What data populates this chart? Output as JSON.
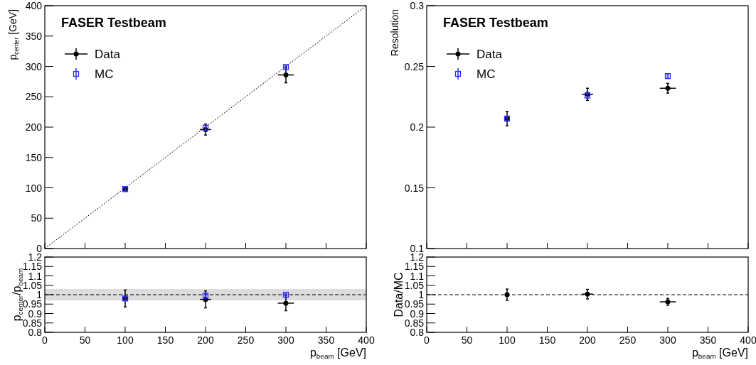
{
  "chart_data": [
    {
      "type": "scatter",
      "title": "FASER Testbeam",
      "ylabel": "p$_{center}$ [GeV]",
      "xlim": [
        0,
        400
      ],
      "xticks": [
        0,
        50,
        100,
        150,
        200,
        250,
        300,
        350,
        400
      ],
      "ylim": [
        0,
        400
      ],
      "yticks": [
        0,
        50,
        100,
        150,
        200,
        250,
        300,
        350,
        400
      ],
      "tick_labels": "y",
      "legend": "top left",
      "grid": false,
      "series": [
        {
          "type": "line",
          "x": [
            0,
            400
          ],
          "values": [
            0,
            400
          ],
          "color": "#000000",
          "line_style": "dotted"
        },
        {
          "name": "Data",
          "color": "#000000",
          "marker": "circle",
          "x": [
            100,
            200,
            300
          ],
          "values": [
            98,
            196,
            286
          ],
          "errors": [
            4,
            9,
            13
          ],
          "xerrors": [
            3,
            7,
            10
          ]
        },
        {
          "name": "MC",
          "color": "#2b2bff",
          "marker": "square",
          "x": [
            100,
            200,
            300
          ],
          "values": [
            98,
            199,
            299
          ],
          "errors": [
            3,
            4,
            2
          ],
          "xerrors": [
            null,
            null,
            null
          ]
        }
      ]
    },
    {
      "type": "scatter",
      "title": "FASER Testbeam",
      "ylabel": "Resolution",
      "xlim": [
        0,
        400
      ],
      "xticks": [
        0,
        50,
        100,
        150,
        200,
        250,
        300,
        350,
        400
      ],
      "ylim": [
        0.1,
        0.3
      ],
      "yticks": [
        0.1,
        0.15,
        0.2,
        0.25,
        0.3
      ],
      "tick_labels": "y",
      "legend": "top left",
      "grid": false,
      "series": [
        {
          "name": "Data",
          "color": "#000000",
          "marker": "circle",
          "x": [
            100,
            200,
            300
          ],
          "values": [
            0.207,
            0.227,
            0.232
          ],
          "errors": [
            0.006,
            0.005,
            0.004
          ],
          "xerrors": [
            3,
            7,
            10
          ]
        },
        {
          "name": "MC",
          "color": "#2b2bff",
          "marker": "square",
          "x": [
            100,
            200,
            300
          ],
          "values": [
            0.207,
            0.226,
            0.242
          ],
          "errors": [
            0.002,
            0.002,
            0.001
          ],
          "xerrors": [
            null,
            null,
            null
          ]
        }
      ]
    },
    {
      "type": "scatter",
      "xlabel": "p$_{beam}$ [GeV]",
      "ylabel": "p$_{center}$/p$_{beam}$",
      "xlim": [
        0,
        400
      ],
      "xticks": [
        0,
        50,
        100,
        150,
        200,
        250,
        300,
        350,
        400
      ],
      "ylim": [
        0.8,
        1.2
      ],
      "yticks": [
        0.8,
        0.85,
        0.9,
        0.95,
        1,
        1.05,
        1.1,
        1.15,
        1.2
      ],
      "grid": false,
      "bands": [
        {
          "axis": "y",
          "from": 0.97,
          "to": 1.03,
          "color": "#dcdcdc"
        }
      ],
      "ref_lines": [
        {
          "axis": "y",
          "value": 1,
          "color": "#000000",
          "line_style": "dashed"
        }
      ],
      "series": [
        {
          "color": "#000000",
          "marker": "circle",
          "x": [
            100,
            200,
            300
          ],
          "values": [
            0.98,
            0.975,
            0.955
          ],
          "errors": [
            0.045,
            0.045,
            0.04
          ],
          "xerrors": [
            3,
            7,
            10
          ]
        },
        {
          "color": "#2b2bff",
          "marker": "square",
          "x": [
            100,
            200,
            300
          ],
          "values": [
            0.98,
            0.995,
            1.0
          ],
          "errors": [
            0.008,
            0.008,
            0.005
          ],
          "xerrors": [
            null,
            null,
            null
          ]
        }
      ]
    },
    {
      "type": "scatter",
      "xlabel": "p$_{beam}$ [GeV]",
      "ylabel": "Data/MC",
      "xlim": [
        0,
        400
      ],
      "xticks": [
        0,
        50,
        100,
        150,
        200,
        250,
        300,
        350,
        400
      ],
      "ylim": [
        0.8,
        1.2
      ],
      "yticks": [
        0.8,
        0.85,
        0.9,
        0.95,
        1,
        1.05,
        1.1,
        1.15,
        1.2
      ],
      "grid": false,
      "ref_lines": [
        {
          "axis": "y",
          "value": 1,
          "color": "#000000",
          "line_style": "dashed"
        }
      ],
      "series": [
        {
          "color": "#000000",
          "marker": "circle",
          "x": [
            100,
            200,
            300
          ],
          "values": [
            1.0,
            1.003,
            0.962
          ],
          "errors": [
            0.03,
            0.025,
            0.018
          ],
          "xerrors": [
            3,
            7,
            10
          ]
        }
      ]
    }
  ]
}
